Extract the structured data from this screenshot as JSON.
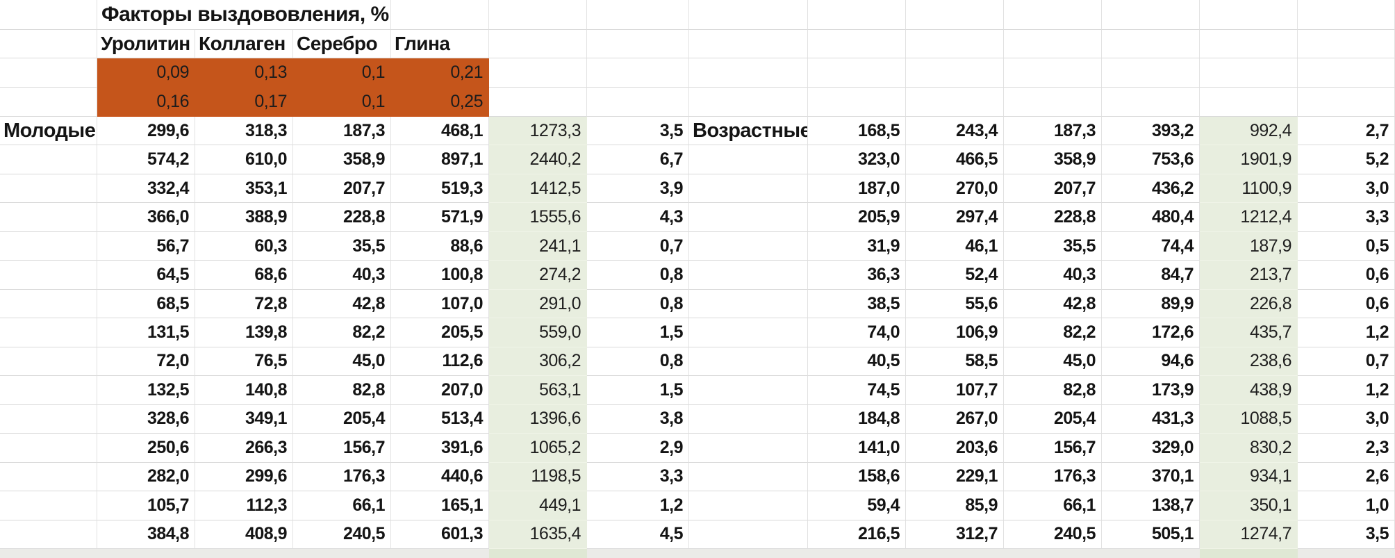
{
  "sheet": {
    "title": "Факторы выздововления, %",
    "factor_headers": [
      "Уролитин",
      "Коллаген",
      "Серебро",
      "Глина"
    ],
    "factor_values": [
      [
        "0,09",
        "0,13",
        "0,1",
        "0,21"
      ],
      [
        "0,16",
        "0,17",
        "0,1",
        "0,25"
      ]
    ],
    "left_group_label": "Молодые",
    "right_group_label": "Возрастные",
    "left_rows": [
      [
        "299,6",
        "318,3",
        "187,3",
        "468,1",
        "1273,3",
        "3,5"
      ],
      [
        "574,2",
        "610,0",
        "358,9",
        "897,1",
        "2440,2",
        "6,7"
      ],
      [
        "332,4",
        "353,1",
        "207,7",
        "519,3",
        "1412,5",
        "3,9"
      ],
      [
        "366,0",
        "388,9",
        "228,8",
        "571,9",
        "1555,6",
        "4,3"
      ],
      [
        "56,7",
        "60,3",
        "35,5",
        "88,6",
        "241,1",
        "0,7"
      ],
      [
        "64,5",
        "68,6",
        "40,3",
        "100,8",
        "274,2",
        "0,8"
      ],
      [
        "68,5",
        "72,8",
        "42,8",
        "107,0",
        "291,0",
        "0,8"
      ],
      [
        "131,5",
        "139,8",
        "82,2",
        "205,5",
        "559,0",
        "1,5"
      ],
      [
        "72,0",
        "76,5",
        "45,0",
        "112,6",
        "306,2",
        "0,8"
      ],
      [
        "132,5",
        "140,8",
        "82,8",
        "207,0",
        "563,1",
        "1,5"
      ],
      [
        "328,6",
        "349,1",
        "205,4",
        "513,4",
        "1396,6",
        "3,8"
      ],
      [
        "250,6",
        "266,3",
        "156,7",
        "391,6",
        "1065,2",
        "2,9"
      ],
      [
        "282,0",
        "299,6",
        "176,3",
        "440,6",
        "1198,5",
        "3,3"
      ],
      [
        "105,7",
        "112,3",
        "66,1",
        "165,1",
        "449,1",
        "1,2"
      ],
      [
        "384,8",
        "408,9",
        "240,5",
        "601,3",
        "1635,4",
        "4,5"
      ]
    ],
    "right_rows": [
      [
        "168,5",
        "243,4",
        "187,3",
        "393,2",
        "992,4",
        "2,7"
      ],
      [
        "323,0",
        "466,5",
        "358,9",
        "753,6",
        "1901,9",
        "5,2"
      ],
      [
        "187,0",
        "270,0",
        "207,7",
        "436,2",
        "1100,9",
        "3,0"
      ],
      [
        "205,9",
        "297,4",
        "228,8",
        "480,4",
        "1212,4",
        "3,3"
      ],
      [
        "31,9",
        "46,1",
        "35,5",
        "74,4",
        "187,9",
        "0,5"
      ],
      [
        "36,3",
        "52,4",
        "40,3",
        "84,7",
        "213,7",
        "0,6"
      ],
      [
        "38,5",
        "55,6",
        "42,8",
        "89,9",
        "226,8",
        "0,6"
      ],
      [
        "74,0",
        "106,9",
        "82,2",
        "172,6",
        "435,7",
        "1,2"
      ],
      [
        "40,5",
        "58,5",
        "45,0",
        "94,6",
        "238,6",
        "0,7"
      ],
      [
        "74,5",
        "107,7",
        "82,8",
        "173,9",
        "438,9",
        "1,2"
      ],
      [
        "184,8",
        "267,0",
        "205,4",
        "431,3",
        "1088,5",
        "3,0"
      ],
      [
        "141,0",
        "203,6",
        "156,7",
        "329,0",
        "830,2",
        "2,3"
      ],
      [
        "158,6",
        "229,1",
        "176,3",
        "370,1",
        "934,1",
        "2,6"
      ],
      [
        "59,4",
        "85,9",
        "66,1",
        "138,7",
        "350,1",
        "1,0"
      ],
      [
        "216,5",
        "312,7",
        "240,5",
        "505,1",
        "1274,7",
        "3,5"
      ]
    ]
  },
  "colors": {
    "orange_fill": "#C5551B",
    "green_fill": "#E8EEDF",
    "gridline": "#E2E2E2",
    "row_line": "#D9D9D9",
    "strip_bg": "#EBEBE8",
    "strip_green": "#DFE8D4"
  }
}
